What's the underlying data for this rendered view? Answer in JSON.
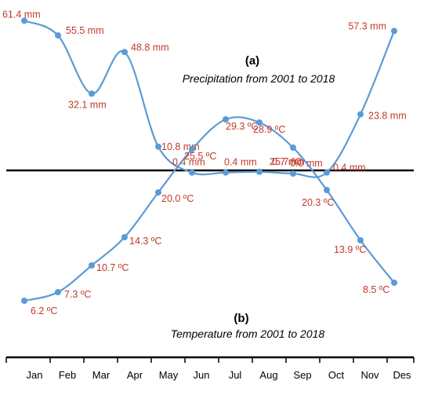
{
  "chart_data": [
    {
      "type": "line",
      "title": "(a)",
      "subtitle": "Precipitation from 2001 to 2018",
      "categories": [
        "Jan",
        "Feb",
        "Mar",
        "Apr",
        "May",
        "Jun",
        "Jul",
        "Aug",
        "Sep",
        "Oct",
        "Nov",
        "Des"
      ],
      "values": [
        61.4,
        55.5,
        32.1,
        48.8,
        10.8,
        0.4,
        0.4,
        0.7,
        0.0,
        0.4,
        23.8,
        57.3
      ],
      "labels": [
        "61.4 mm",
        "55.5 mm",
        "32.1 mm",
        "48.8 mm",
        "10.8 mm",
        "0.4 mm",
        "0.4 mm",
        "0.7 mm",
        "0.0 mm",
        "0.4 mm",
        "23.8 mm",
        "57.3 mm"
      ],
      "ylim": [
        0,
        65
      ],
      "line_color": "#5b9bd5",
      "label_color": "#c0392b"
    },
    {
      "type": "line",
      "title": "(b)",
      "subtitle": "Temperature from 2001 to 2018",
      "categories": [
        "Jan",
        "Feb",
        "Mar",
        "Apr",
        "May",
        "Jun",
        "Jul",
        "Aug",
        "Sep",
        "Oct",
        "Nov",
        "Des"
      ],
      "values": [
        6.2,
        7.3,
        10.7,
        14.3,
        20.0,
        25.5,
        29.3,
        28.9,
        25.7,
        20.3,
        13.9,
        8.5
      ],
      "labels": [
        "6.2 ºC",
        "7.3 ºC",
        "10.7 ºC",
        "14.3 ºC",
        "20.0 ºC",
        "25.5 ºC",
        "29.3 ºC",
        "28.9 ºC",
        "25.7 ºC",
        "20.3 ºC",
        "13.9 ºC",
        "8.5 ºC"
      ],
      "ylim": [
        0,
        32
      ],
      "line_color": "#5b9bd5",
      "label_color": "#c0392b"
    }
  ]
}
